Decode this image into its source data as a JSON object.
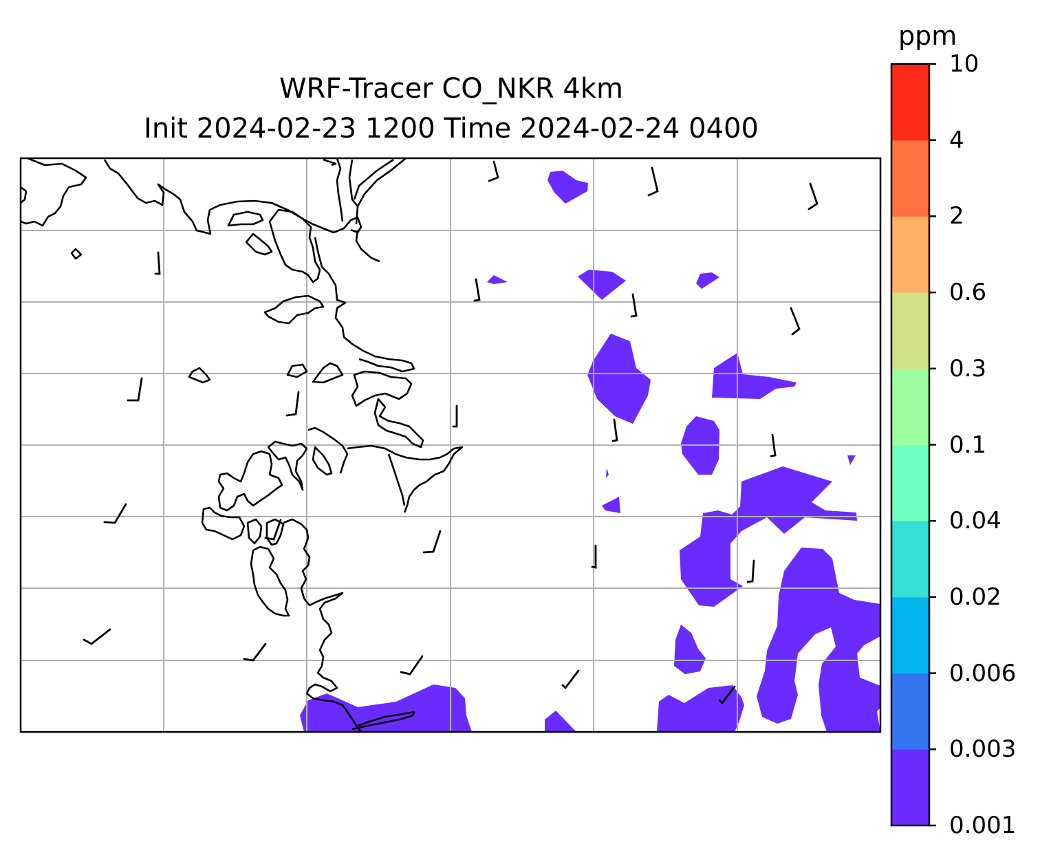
{
  "title": {
    "line1": "WRF-Tracer CO_NKR 4km",
    "line2": "Init 2024-02-23 1200 Time 2024-02-24 0400"
  },
  "colorbar": {
    "unit": "ppm",
    "levels": [
      "0.001",
      "0.003",
      "0.006",
      "0.02",
      "0.04",
      "0.1",
      "0.3",
      "0.6",
      "2",
      "4",
      "10"
    ],
    "colors": [
      "#6a2bff",
      "#3476f2",
      "#02b5ef",
      "#33e0d5",
      "#6dffbf",
      "#9dfea0",
      "#d1e289",
      "#ffb166",
      "#ff7241",
      "#ff2a19"
    ]
  },
  "map": {
    "background": "#ffffff",
    "gridlines": true,
    "grid_color": "#b0b0b0",
    "coastline_color": "#000000",
    "contour_fill_color": "#6a2bff",
    "wind_barbs": true
  }
}
